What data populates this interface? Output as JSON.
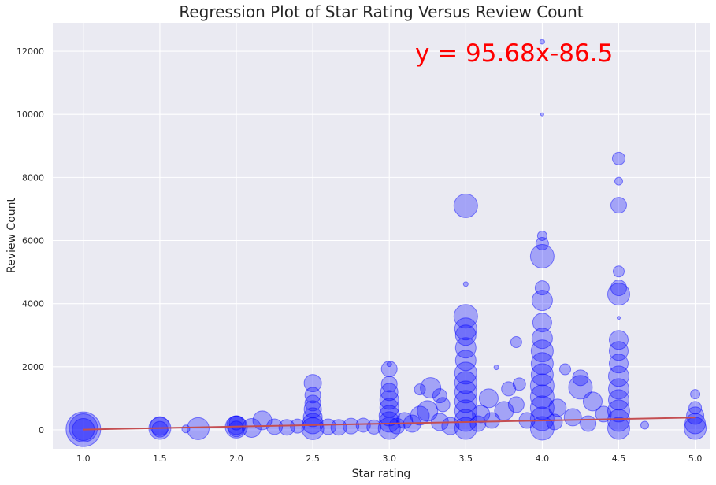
{
  "chart_data": {
    "type": "scatter",
    "title": "Regression Plot of Star Rating Versus Review Count",
    "xlabel": "Star rating",
    "ylabel": "Review Count",
    "xlim": [
      0.8,
      5.1
    ],
    "ylim": [
      -600,
      12900
    ],
    "x_ticks": [
      "1.0",
      "1.5",
      "2.0",
      "2.5",
      "3.0",
      "3.5",
      "4.0",
      "4.5",
      "5.0"
    ],
    "x_tick_values": [
      1.0,
      1.5,
      2.0,
      2.5,
      3.0,
      3.5,
      4.0,
      4.5,
      5.0
    ],
    "y_ticks": [
      "0",
      "2000",
      "4000",
      "6000",
      "8000",
      "10000",
      "12000"
    ],
    "y_tick_values": [
      0,
      2000,
      4000,
      6000,
      8000,
      10000,
      12000
    ],
    "grid": true,
    "background_color": "#eaeaf2",
    "point_color": "#0000ff",
    "line_color": "#c44e52",
    "equation_color": "#ff0000",
    "annotation": "y = 95.68x-86.5",
    "regression": {
      "slope": 95.68,
      "intercept": -86.5,
      "x_range": [
        1.0,
        5.0
      ]
    },
    "points": [
      {
        "x": 1.0,
        "y": 20,
        "s": 22
      },
      {
        "x": 1.0,
        "y": 60,
        "s": 18
      },
      {
        "x": 1.0,
        "y": 10,
        "s": 14
      },
      {
        "x": 1.5,
        "y": 50,
        "s": 14
      },
      {
        "x": 1.5,
        "y": 120,
        "s": 12
      },
      {
        "x": 1.5,
        "y": 20,
        "s": 10
      },
      {
        "x": 1.67,
        "y": 30,
        "s": 5
      },
      {
        "x": 1.75,
        "y": 40,
        "s": 14
      },
      {
        "x": 2.0,
        "y": 90,
        "s": 14
      },
      {
        "x": 2.0,
        "y": 150,
        "s": 12
      },
      {
        "x": 2.0,
        "y": 30,
        "s": 10
      },
      {
        "x": 2.0,
        "y": 220,
        "s": 9
      },
      {
        "x": 2.1,
        "y": 60,
        "s": 12
      },
      {
        "x": 2.17,
        "y": 300,
        "s": 12
      },
      {
        "x": 2.25,
        "y": 100,
        "s": 10
      },
      {
        "x": 2.33,
        "y": 80,
        "s": 10
      },
      {
        "x": 2.4,
        "y": 120,
        "s": 9
      },
      {
        "x": 2.5,
        "y": 40,
        "s": 14
      },
      {
        "x": 2.5,
        "y": 200,
        "s": 13
      },
      {
        "x": 2.5,
        "y": 400,
        "s": 12
      },
      {
        "x": 2.5,
        "y": 650,
        "s": 11
      },
      {
        "x": 2.5,
        "y": 850,
        "s": 10
      },
      {
        "x": 2.5,
        "y": 1100,
        "s": 10
      },
      {
        "x": 2.5,
        "y": 1480,
        "s": 11
      },
      {
        "x": 2.6,
        "y": 100,
        "s": 10
      },
      {
        "x": 2.67,
        "y": 80,
        "s": 10
      },
      {
        "x": 2.75,
        "y": 120,
        "s": 10
      },
      {
        "x": 2.83,
        "y": 150,
        "s": 9
      },
      {
        "x": 2.9,
        "y": 90,
        "s": 9
      },
      {
        "x": 3.0,
        "y": 50,
        "s": 14
      },
      {
        "x": 3.0,
        "y": 250,
        "s": 13
      },
      {
        "x": 3.0,
        "y": 450,
        "s": 13
      },
      {
        "x": 3.0,
        "y": 700,
        "s": 12
      },
      {
        "x": 3.0,
        "y": 950,
        "s": 12
      },
      {
        "x": 3.0,
        "y": 1200,
        "s": 11
      },
      {
        "x": 3.0,
        "y": 1450,
        "s": 10
      },
      {
        "x": 3.0,
        "y": 1930,
        "s": 10
      },
      {
        "x": 3.0,
        "y": 2080,
        "s": 3
      },
      {
        "x": 3.05,
        "y": 120,
        "s": 10
      },
      {
        "x": 3.1,
        "y": 300,
        "s": 10
      },
      {
        "x": 3.15,
        "y": 200,
        "s": 11
      },
      {
        "x": 3.2,
        "y": 450,
        "s": 12
      },
      {
        "x": 3.25,
        "y": 600,
        "s": 13
      },
      {
        "x": 3.27,
        "y": 1330,
        "s": 13
      },
      {
        "x": 3.2,
        "y": 1280,
        "s": 7
      },
      {
        "x": 3.33,
        "y": 250,
        "s": 11
      },
      {
        "x": 3.35,
        "y": 800,
        "s": 9
      },
      {
        "x": 3.33,
        "y": 1080,
        "s": 9
      },
      {
        "x": 3.4,
        "y": 120,
        "s": 11
      },
      {
        "x": 3.5,
        "y": 50,
        "s": 14
      },
      {
        "x": 3.5,
        "y": 300,
        "s": 14
      },
      {
        "x": 3.5,
        "y": 600,
        "s": 14
      },
      {
        "x": 3.5,
        "y": 900,
        "s": 14
      },
      {
        "x": 3.5,
        "y": 1200,
        "s": 14
      },
      {
        "x": 3.5,
        "y": 1500,
        "s": 14
      },
      {
        "x": 3.5,
        "y": 1800,
        "s": 14
      },
      {
        "x": 3.5,
        "y": 2200,
        "s": 13
      },
      {
        "x": 3.5,
        "y": 2600,
        "s": 13
      },
      {
        "x": 3.5,
        "y": 3000,
        "s": 13
      },
      {
        "x": 3.5,
        "y": 3200,
        "s": 14
      },
      {
        "x": 3.5,
        "y": 3600,
        "s": 15
      },
      {
        "x": 3.5,
        "y": 7100,
        "s": 15
      },
      {
        "x": 3.5,
        "y": 4620,
        "s": 3
      },
      {
        "x": 3.58,
        "y": 200,
        "s": 10
      },
      {
        "x": 3.6,
        "y": 500,
        "s": 11
      },
      {
        "x": 3.65,
        "y": 1000,
        "s": 12
      },
      {
        "x": 3.67,
        "y": 300,
        "s": 10
      },
      {
        "x": 3.7,
        "y": 1980,
        "s": 3
      },
      {
        "x": 3.75,
        "y": 600,
        "s": 12
      },
      {
        "x": 3.78,
        "y": 1300,
        "s": 9
      },
      {
        "x": 3.83,
        "y": 800,
        "s": 10
      },
      {
        "x": 3.83,
        "y": 2780,
        "s": 7
      },
      {
        "x": 3.85,
        "y": 1450,
        "s": 8
      },
      {
        "x": 3.9,
        "y": 300,
        "s": 10
      },
      {
        "x": 4.0,
        "y": 50,
        "s": 15
      },
      {
        "x": 4.0,
        "y": 350,
        "s": 15
      },
      {
        "x": 4.0,
        "y": 700,
        "s": 15
      },
      {
        "x": 4.0,
        "y": 1050,
        "s": 15
      },
      {
        "x": 4.0,
        "y": 1400,
        "s": 15
      },
      {
        "x": 4.0,
        "y": 1750,
        "s": 14
      },
      {
        "x": 4.0,
        "y": 2100,
        "s": 14
      },
      {
        "x": 4.0,
        "y": 2500,
        "s": 14
      },
      {
        "x": 4.0,
        "y": 2900,
        "s": 13
      },
      {
        "x": 4.0,
        "y": 3400,
        "s": 12
      },
      {
        "x": 4.0,
        "y": 4100,
        "s": 13
      },
      {
        "x": 4.0,
        "y": 4500,
        "s": 9
      },
      {
        "x": 4.0,
        "y": 5500,
        "s": 15
      },
      {
        "x": 4.0,
        "y": 5900,
        "s": 8
      },
      {
        "x": 4.0,
        "y": 6150,
        "s": 6
      },
      {
        "x": 4.0,
        "y": 10000,
        "s": 2
      },
      {
        "x": 4.0,
        "y": 12300,
        "s": 3
      },
      {
        "x": 4.08,
        "y": 250,
        "s": 10
      },
      {
        "x": 4.1,
        "y": 700,
        "s": 11
      },
      {
        "x": 4.15,
        "y": 1920,
        "s": 7
      },
      {
        "x": 4.2,
        "y": 400,
        "s": 11
      },
      {
        "x": 4.25,
        "y": 1350,
        "s": 15
      },
      {
        "x": 4.25,
        "y": 1650,
        "s": 10
      },
      {
        "x": 4.3,
        "y": 200,
        "s": 10
      },
      {
        "x": 4.33,
        "y": 900,
        "s": 12
      },
      {
        "x": 4.4,
        "y": 500,
        "s": 10
      },
      {
        "x": 4.5,
        "y": 50,
        "s": 14
      },
      {
        "x": 4.5,
        "y": 300,
        "s": 14
      },
      {
        "x": 4.5,
        "y": 600,
        "s": 14
      },
      {
        "x": 4.5,
        "y": 950,
        "s": 13
      },
      {
        "x": 4.5,
        "y": 1300,
        "s": 13
      },
      {
        "x": 4.5,
        "y": 1700,
        "s": 13
      },
      {
        "x": 4.5,
        "y": 2100,
        "s": 12
      },
      {
        "x": 4.5,
        "y": 2500,
        "s": 12
      },
      {
        "x": 4.5,
        "y": 2850,
        "s": 12
      },
      {
        "x": 4.5,
        "y": 3550,
        "s": 2
      },
      {
        "x": 4.5,
        "y": 4300,
        "s": 14
      },
      {
        "x": 4.5,
        "y": 4500,
        "s": 10
      },
      {
        "x": 4.5,
        "y": 5020,
        "s": 7
      },
      {
        "x": 4.5,
        "y": 7120,
        "s": 10
      },
      {
        "x": 4.5,
        "y": 7880,
        "s": 5
      },
      {
        "x": 4.5,
        "y": 8600,
        "s": 8
      },
      {
        "x": 4.67,
        "y": 150,
        "s": 5
      },
      {
        "x": 5.0,
        "y": 50,
        "s": 14
      },
      {
        "x": 5.0,
        "y": 200,
        "s": 13
      },
      {
        "x": 5.0,
        "y": 450,
        "s": 11
      },
      {
        "x": 5.0,
        "y": 700,
        "s": 8
      },
      {
        "x": 5.0,
        "y": 1130,
        "s": 6
      }
    ]
  }
}
